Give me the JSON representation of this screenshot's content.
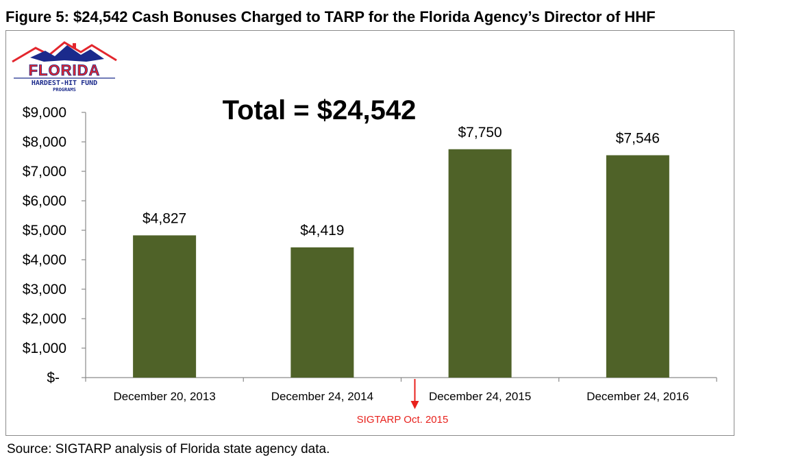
{
  "figure_title": "Figure 5: $24,542 Cash Bonuses Charged to TARP for the Florida Agency’s Director of HHF",
  "source_note": "Source: SIGTARP analysis of Florida state agency data.",
  "logo": {
    "name": "FLORIDA",
    "line1": "HARDEST-HIT FUND",
    "line2": "PROGRAMS",
    "colors": {
      "red": "#e3262d",
      "blue": "#1b2a8c"
    }
  },
  "chart_data": {
    "type": "bar",
    "title": "",
    "annotation_total": "Total = $24,542",
    "categories": [
      "December 20, 2013",
      "December 24, 2014",
      "December 24, 2015",
      "December 24, 2016"
    ],
    "values": [
      4827,
      4419,
      7750,
      7546
    ],
    "data_labels": [
      "$4,827",
      "$4,419",
      "$7,750",
      "$7,546"
    ],
    "y_ticks": [
      0,
      1000,
      2000,
      3000,
      4000,
      5000,
      6000,
      7000,
      8000,
      9000
    ],
    "y_tick_labels": [
      "$-",
      "$1,000",
      "$2,000",
      "$3,000",
      "$4,000",
      "$5,000",
      "$6,000",
      "$7,000",
      "$8,000",
      "$9,000"
    ],
    "ylim": [
      0,
      9000
    ],
    "xlabel": "",
    "ylabel": "",
    "grid": false,
    "bar_color": "#4f6228",
    "marker": {
      "label": "SIGTARP Oct. 2015",
      "between": [
        1,
        2
      ],
      "color": "#e8211c"
    }
  }
}
